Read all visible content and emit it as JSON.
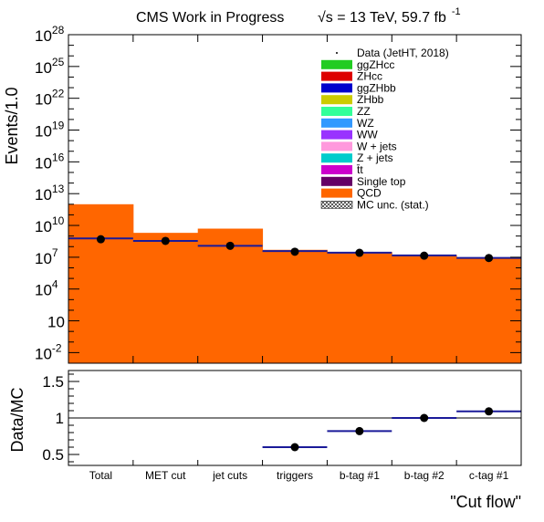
{
  "colors": {
    "qcd_fill": "#ff6600",
    "ttbar_line": "#1a1a99",
    "frame": "#000000"
  },
  "chart_data": [
    {
      "type": "bar",
      "title": "CMS Work in Progress",
      "energy_label": "√s = 13 TeV, 59.7 fb",
      "energy_exp": "-1",
      "xlabel": "\"Cut flow\"",
      "ylabel": "Events/1.0",
      "log_y": true,
      "ylim": [
        0.001,
        1e+28
      ],
      "categories": [
        "Total",
        "MET cut",
        "jet cuts",
        "triggers",
        "b-tag #1",
        "b-tag #2",
        "c-tag #1"
      ],
      "y_ticks": [
        {
          "base": "10",
          "exp": "28",
          "value": 1e+28
        },
        {
          "base": "10",
          "exp": "25",
          "value": 1e+25
        },
        {
          "base": "10",
          "exp": "22",
          "value": 1e+22
        },
        {
          "base": "10",
          "exp": "19",
          "value": 1e+19
        },
        {
          "base": "10",
          "exp": "16",
          "value": 1e+16
        },
        {
          "base": "10",
          "exp": "13",
          "value": 10000000000000.0
        },
        {
          "base": "10",
          "exp": "10",
          "value": 10000000000.0
        },
        {
          "base": "10",
          "exp": "7",
          "value": 10000000.0
        },
        {
          "base": "10",
          "exp": "4",
          "value": 10000.0
        },
        {
          "base": "10",
          "exp": "",
          "value": 10
        },
        {
          "base": "10",
          "exp": "-2",
          "value": 0.01
        }
      ],
      "series": [
        {
          "name": "QCD",
          "color": "#ff6600",
          "values": [
            1000000000000.0,
            2000000000.0,
            5000000000.0,
            50000000.0,
            30000000.0,
            16000000.0,
            8000000.0
          ]
        },
        {
          "name": "t̄t",
          "color": "#1a1a99",
          "values": [
            600000000.0,
            350000000.0,
            120000000.0,
            38000000.0,
            27000000.0,
            15000000.0,
            8700000.0
          ]
        },
        {
          "name": "Data (JetHT, 2018)",
          "color": "#000000",
          "values": [
            500000000.0,
            350000000.0,
            120000000.0,
            33000000.0,
            26000000.0,
            14000000.0,
            8500000.0
          ]
        }
      ],
      "legend": {
        "placement": "top-right",
        "entries": [
          {
            "label": "Data (JetHT, 2018)",
            "color": "#000000",
            "style": "dot"
          },
          {
            "label": "ggZHcc",
            "color": "#22cc22",
            "style": "box"
          },
          {
            "label": "ZHcc",
            "color": "#dd0000",
            "style": "box"
          },
          {
            "label": "ggZHbb",
            "color": "#0000cc",
            "style": "box"
          },
          {
            "label": "ZHbb",
            "color": "#cccc00",
            "style": "box"
          },
          {
            "label": "ZZ",
            "color": "#33ff99",
            "style": "box"
          },
          {
            "label": "WZ",
            "color": "#3399ff",
            "style": "box"
          },
          {
            "label": "WW",
            "color": "#9933ff",
            "style": "box"
          },
          {
            "label": "W + jets",
            "color": "#ff99dd",
            "style": "box"
          },
          {
            "label": "Z + jets",
            "color": "#00cccc",
            "style": "box"
          },
          {
            "label": "t̄t",
            "color": "#cc00cc",
            "style": "box"
          },
          {
            "label": "Single top",
            "color": "#660066",
            "style": "box"
          },
          {
            "label": "QCD",
            "color": "#ff6600",
            "style": "box"
          },
          {
            "label": "MC unc. (stat.)",
            "color": "#000000",
            "style": "hatch"
          }
        ]
      }
    },
    {
      "type": "scatter",
      "ylabel": "Data/MC",
      "ylim": [
        0.35,
        1.65
      ],
      "y_ticks": [
        {
          "label": "1.5",
          "value": 1.5
        },
        {
          "label": "1",
          "value": 1.0
        },
        {
          "label": "0.5",
          "value": 0.5
        }
      ],
      "reference_line": 1.0,
      "categories": [
        "Total",
        "MET cut",
        "jet cuts",
        "triggers",
        "b-tag #1",
        "b-tag #2",
        "c-tag #1"
      ],
      "values": [
        null,
        null,
        null,
        0.6,
        0.82,
        1.0,
        1.09
      ]
    }
  ]
}
